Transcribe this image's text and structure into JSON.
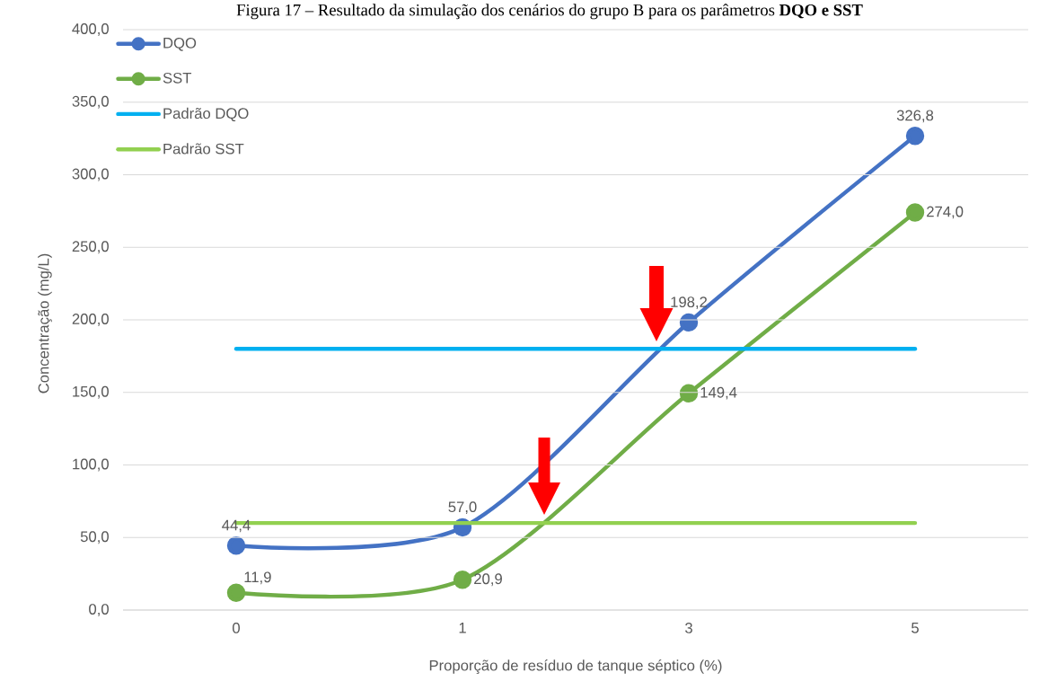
{
  "chart_data": {
    "type": "line",
    "title": "Figura 17 – Resultado da simulação dos cenários do grupo B para os parâmetros **DQO e SST**",
    "xlabel": "Proporção de resíduo de tanque séptico (%)",
    "ylabel": "Concentração (mg/L)",
    "categories": [
      "0",
      "1",
      "3",
      "5"
    ],
    "series": [
      {
        "name": "DQO",
        "color": "#4472c4",
        "marker": "circle",
        "values": [
          44.4,
          57.0,
          198.2,
          326.8
        ],
        "value_labels": [
          "44,4",
          "57,0",
          "198,2",
          "326,8"
        ]
      },
      {
        "name": "SST",
        "color": "#70ad47",
        "marker": "circle",
        "values": [
          11.9,
          20.9,
          149.4,
          274.0
        ],
        "value_labels": [
          "11,9",
          "20,9",
          "149,4",
          "274,0"
        ]
      },
      {
        "name": "Padrão DQO",
        "color": "#00b0f0",
        "marker": "none",
        "values": [
          180,
          180,
          180,
          180
        ]
      },
      {
        "name": "Padrão SST",
        "color": "#92d050",
        "marker": "none",
        "values": [
          60,
          60,
          60,
          60
        ]
      }
    ],
    "ylim": [
      0,
      400
    ],
    "yticks": [
      {
        "value": 0,
        "label": "0,0"
      },
      {
        "value": 50,
        "label": "50,0"
      },
      {
        "value": 100,
        "label": "100,0"
      },
      {
        "value": 150,
        "label": "150,0"
      },
      {
        "value": 200,
        "label": "200,0"
      },
      {
        "value": 250,
        "label": "250,0"
      },
      {
        "value": 300,
        "label": "300,0"
      },
      {
        "value": 350,
        "label": "350,0"
      },
      {
        "value": 400,
        "label": "400,0"
      }
    ],
    "grid": "y",
    "legend": "top left"
  }
}
